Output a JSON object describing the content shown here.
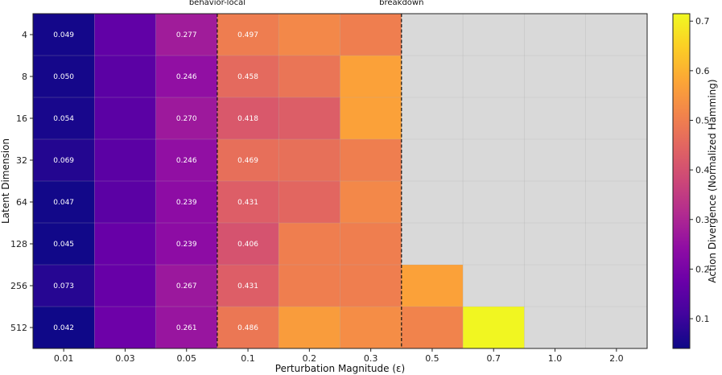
{
  "chart_data": {
    "type": "heatmap",
    "xlabel": "Perturbation Magnitude (ε)",
    "ylabel": "Latent Dimension",
    "colorbar_label": "Action Divergence (Normalized Hamming)",
    "colormap": "plasma",
    "vmin": 0.04,
    "vmax": 0.715,
    "colorbar_ticks": [
      "0.1",
      "0.2",
      "0.3",
      "0.4",
      "0.5",
      "0.6",
      "0.7"
    ],
    "x_categories": [
      "0.01",
      "0.03",
      "0.05",
      "0.1",
      "0.2",
      "0.3",
      "0.5",
      "0.7",
      "1.0",
      "2.0"
    ],
    "y_categories": [
      "4",
      "8",
      "16",
      "32",
      "64",
      "128",
      "256",
      "512"
    ],
    "values": [
      [
        0.049,
        0.16,
        0.277,
        0.497,
        0.52,
        0.5,
        null,
        null,
        null,
        null
      ],
      [
        0.05,
        0.15,
        0.246,
        0.458,
        0.48,
        0.57,
        null,
        null,
        null,
        null
      ],
      [
        0.054,
        0.15,
        0.27,
        0.418,
        0.43,
        0.57,
        null,
        null,
        null,
        null
      ],
      [
        0.069,
        0.15,
        0.246,
        0.469,
        0.47,
        0.5,
        null,
        null,
        null,
        null
      ],
      [
        0.047,
        0.15,
        0.239,
        0.431,
        0.45,
        0.52,
        null,
        null,
        null,
        null
      ],
      [
        0.045,
        0.17,
        0.239,
        0.406,
        0.5,
        0.5,
        null,
        null,
        null,
        null
      ],
      [
        0.073,
        0.17,
        0.267,
        0.431,
        0.5,
        0.5,
        0.57,
        null,
        null,
        null
      ],
      [
        0.042,
        0.18,
        0.261,
        0.486,
        0.56,
        0.53,
        0.51,
        0.71,
        null,
        null
      ]
    ],
    "annotated_columns": [
      "0.01",
      "0.05",
      "0.1"
    ],
    "missing_color": "#d9d9d9",
    "annotations": [
      {
        "text": "behavior-local",
        "boundary_after": "0.05"
      },
      {
        "text": "breakdown",
        "boundary_after": "0.3"
      }
    ]
  }
}
